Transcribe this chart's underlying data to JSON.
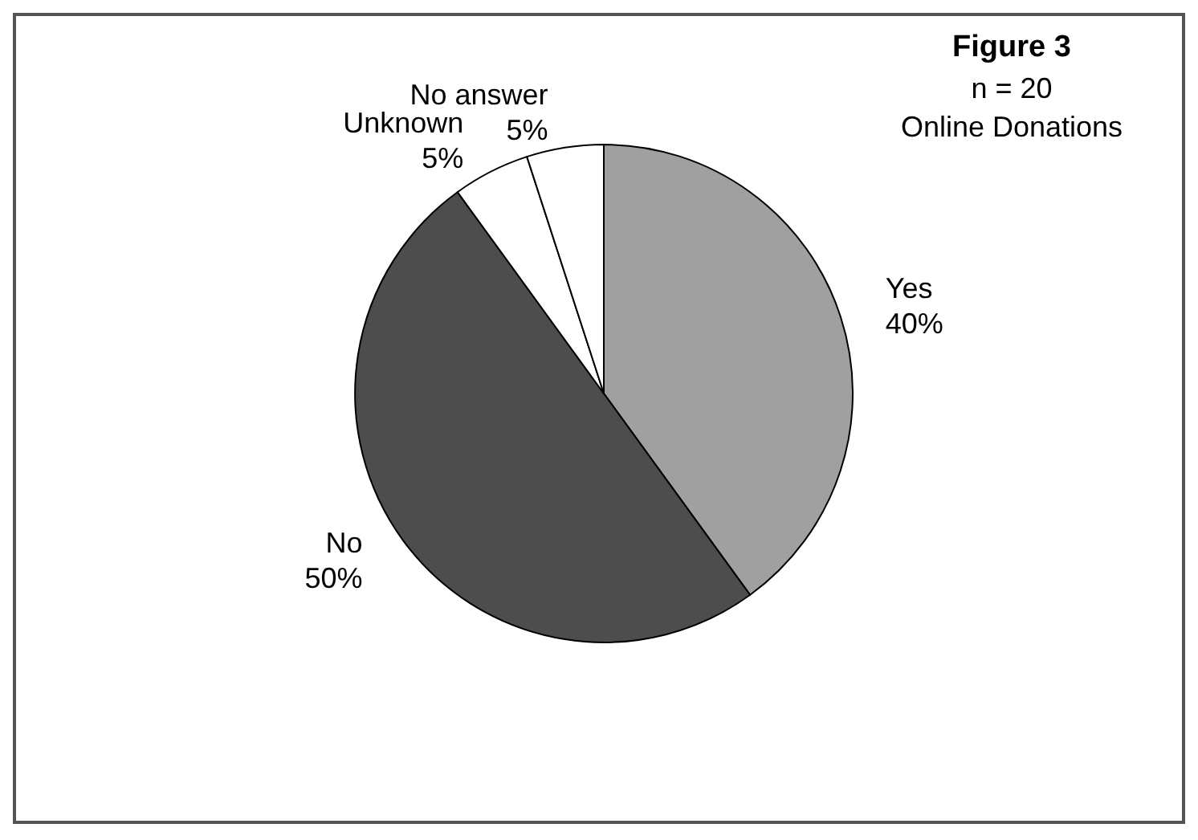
{
  "chart_data": {
    "type": "pie",
    "title": "Figure 3",
    "subtitle": "n = 20",
    "annotations": [
      "Online Donations"
    ],
    "categories": [
      "Yes",
      "No",
      "Unknown",
      "No answer"
    ],
    "values": [
      40,
      50,
      5,
      5
    ],
    "value_labels": [
      "40%",
      "50%",
      "5%",
      "5%"
    ],
    "colors": [
      "#a0a0a0",
      "#4d4d4d",
      "#ffffff",
      "#ffffff"
    ],
    "legend": false
  }
}
